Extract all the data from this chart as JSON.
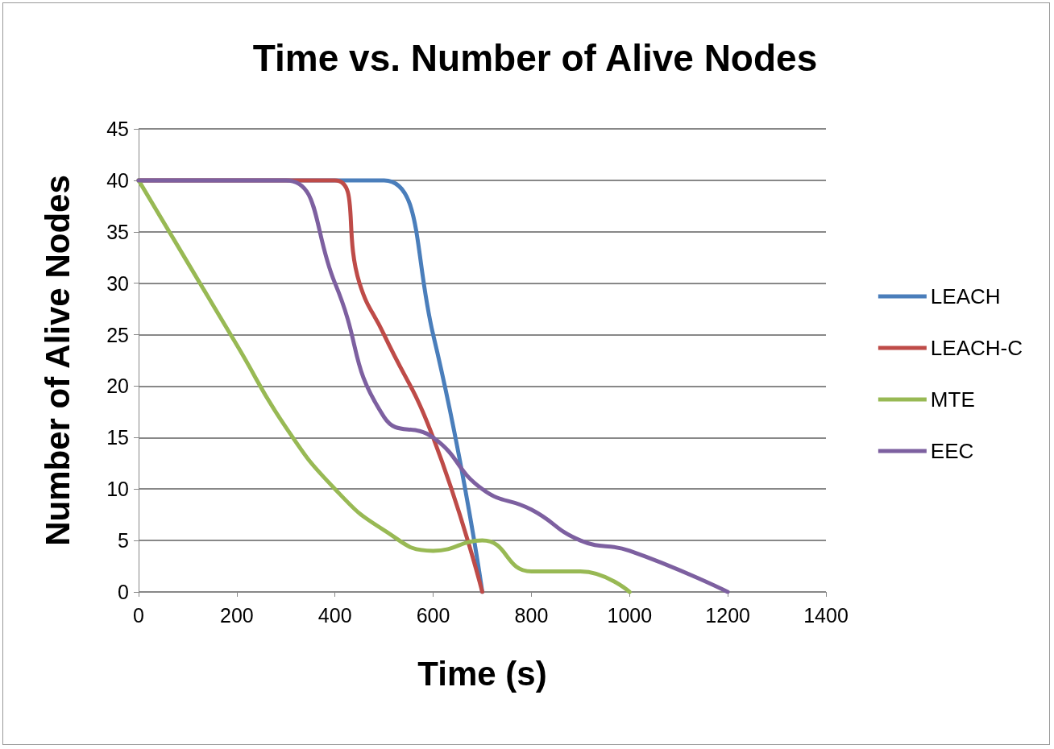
{
  "chart_data": {
    "type": "line",
    "title": "Time vs. Number of Alive Nodes",
    "xlabel": "Time (s)",
    "ylabel": "Number of Alive Nodes",
    "series": [
      {
        "name": "LEACH",
        "color": "#4a7ebb",
        "x": [
          0,
          200,
          300,
          400,
          500,
          600,
          700
        ],
        "values": [
          40,
          40,
          40,
          40,
          40,
          25,
          0
        ]
      },
      {
        "name": "LEACH-C",
        "color": "#be4b48",
        "x": [
          0,
          200,
          300,
          400,
          450,
          500,
          600,
          700
        ],
        "values": [
          40,
          40,
          40,
          40,
          30,
          25,
          15,
          0
        ]
      },
      {
        "name": "MTE",
        "color": "#98b954",
        "x": [
          0,
          100,
          200,
          300,
          400,
          500,
          600,
          700,
          800,
          900,
          1000
        ],
        "values": [
          40,
          32,
          24,
          16,
          10,
          6,
          4,
          5,
          2,
          2,
          0
        ]
      },
      {
        "name": "EEC",
        "color": "#7d60a0",
        "x": [
          0,
          200,
          300,
          400,
          500,
          600,
          700,
          800,
          900,
          1000,
          1200
        ],
        "values": [
          40,
          40,
          40,
          30,
          17,
          15,
          10,
          8,
          5,
          4,
          0
        ]
      }
    ],
    "xlim": [
      0,
      1400
    ],
    "xticks": [
      0,
      200,
      400,
      600,
      800,
      1000,
      1200,
      1400
    ],
    "ylim": [
      0,
      45
    ],
    "yticks": [
      0,
      5,
      10,
      15,
      20,
      25,
      30,
      35,
      40,
      45
    ],
    "grid": "y",
    "legend": "right",
    "marker": "none",
    "line_style": "solid"
  }
}
